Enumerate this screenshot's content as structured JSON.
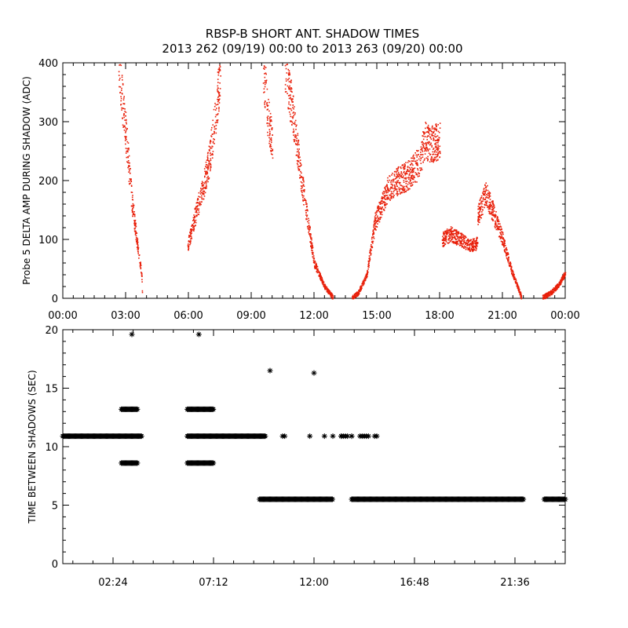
{
  "title": {
    "line1": "RBSP-B SHORT ANT. SHADOW TIMES",
    "line2": "2013 262 (09/19) 00:00 to 2013 263 (09/20) 00:00"
  },
  "colors": {
    "red_points": "#e8200a",
    "black": "#000000"
  },
  "chart_data": [
    {
      "type": "scatter",
      "ylabel": "Probe 5 DELTA AMP DURING SHADOW (ADC)",
      "xlim": [
        0,
        24
      ],
      "ylim": [
        0,
        400
      ],
      "x_ticks": [
        "00:00",
        "03:00",
        "06:00",
        "09:00",
        "12:00",
        "15:00",
        "18:00",
        "21:00",
        "00:00"
      ],
      "y_ticks": [
        0,
        100,
        200,
        300,
        400
      ],
      "series": [
        {
          "color": "#e8200a",
          "marker": "dot",
          "segments": [
            {
              "x": [
                2.65,
                3.0,
                3.3,
                3.55,
                3.75,
                3.78
              ],
              "y": [
                400,
                280,
                160,
                90,
                40,
                5
              ]
            },
            {
              "x": [
                5.95,
                6.3,
                6.7,
                7.0,
                7.3,
                7.55
              ],
              "y": [
                90,
                140,
                190,
                240,
                320,
                400
              ]
            },
            {
              "x": [
                9.55,
                9.75,
                10.0
              ],
              "y": [
                400,
                320,
                260
              ]
            },
            {
              "x": [
                10.6,
                10.9,
                11.2,
                11.6,
                12.0,
                12.5,
                12.9
              ],
              "y": [
                400,
                330,
                250,
                150,
                60,
                20,
                2
              ]
            },
            {
              "x": [
                13.8,
                14.1,
                14.5,
                14.9,
                15.5,
                16.0,
                16.5,
                17.0,
                17.3,
                17.5,
                18.0
              ],
              "y": [
                2,
                10,
                40,
                130,
                185,
                200,
                210,
                230,
                270,
                260,
                270
              ]
            },
            {
              "x": [
                18.1,
                18.5,
                19.0,
                19.5,
                19.8
              ],
              "y": [
                100,
                110,
                100,
                90,
                95
              ]
            },
            {
              "x": [
                19.8,
                20.2,
                20.6,
                21.0,
                21.4,
                21.9
              ],
              "y": [
                140,
                180,
                140,
                100,
                50,
                2
              ]
            },
            {
              "x": [
                22.9,
                23.3,
                23.7,
                24.0
              ],
              "y": [
                2,
                10,
                25,
                45
              ]
            }
          ]
        }
      ]
    },
    {
      "type": "scatter",
      "ylabel": "TIME BETWEEN SHADOWS (SEC)",
      "xlim": [
        0,
        24
      ],
      "ylim": [
        0,
        20
      ],
      "x_ticks": [
        "02:24",
        "07:12",
        "12:00",
        "16:48",
        "21:36"
      ],
      "y_ticks": [
        0,
        5,
        10,
        15,
        20
      ],
      "series": [
        {
          "color": "#000000",
          "marker": "asterisk",
          "bands": [
            {
              "x_start": 0.0,
              "x_end": 3.8,
              "y": 10.9
            },
            {
              "x_start": 5.95,
              "x_end": 9.7,
              "y": 10.9
            },
            {
              "x_start": 2.8,
              "x_end": 3.6,
              "y": 13.2
            },
            {
              "x_start": 2.8,
              "x_end": 3.6,
              "y": 8.6
            },
            {
              "x_start": 5.95,
              "x_end": 7.2,
              "y": 13.2
            },
            {
              "x_start": 5.95,
              "x_end": 7.2,
              "y": 8.6
            },
            {
              "x_start": 9.4,
              "x_end": 12.9,
              "y": 5.5
            },
            {
              "x_start": 13.8,
              "x_end": 22.0,
              "y": 5.5
            },
            {
              "x_start": 23.0,
              "x_end": 24.0,
              "y": 5.5
            }
          ],
          "points": {
            "x": [
              3.3,
              6.5,
              9.9,
              10.5,
              10.6,
              11.8,
              12.0,
              12.5,
              12.9,
              13.3,
              13.5,
              13.8,
              13.4,
              13.3,
              13.6,
              13.8,
              14.2,
              14.4,
              14.3,
              14.6,
              14.5,
              14.9,
              15.0
            ],
            "y": [
              19.6,
              19.6,
              16.5,
              10.9,
              10.9,
              10.9,
              16.3,
              10.9,
              10.9,
              10.9,
              10.9,
              10.9,
              10.9,
              10.9,
              10.9,
              10.9,
              10.9,
              10.9,
              10.9,
              10.9,
              10.9,
              10.9,
              10.9
            ]
          }
        }
      ]
    }
  ]
}
